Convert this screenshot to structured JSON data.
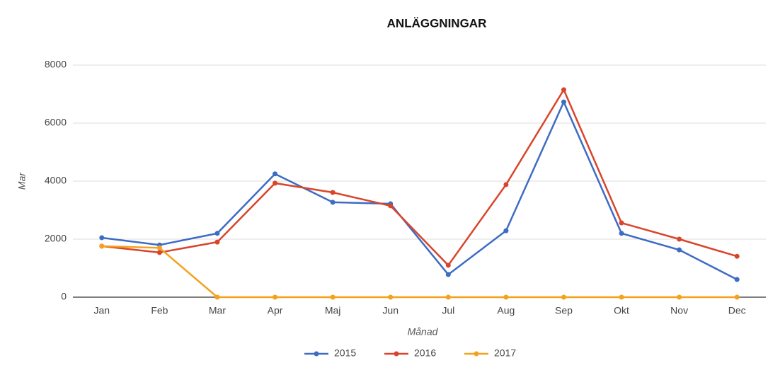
{
  "chart_data": {
    "type": "line",
    "title": "ANLÄGGNINGAR",
    "x_label": "Månad",
    "y_label": "Mar",
    "categories": [
      "Jan",
      "Feb",
      "Mar",
      "Apr",
      "Maj",
      "Jun",
      "Jul",
      "Aug",
      "Sep",
      "Okt",
      "Nov",
      "Dec"
    ],
    "series": [
      {
        "name": "2015",
        "color": "#3d6cc3",
        "values": [
          2050,
          1800,
          2200,
          4250,
          3270,
          3220,
          780,
          2290,
          6730,
          2200,
          1630,
          610
        ]
      },
      {
        "name": "2016",
        "color": "#d8452a",
        "values": [
          1760,
          1540,
          1900,
          3930,
          3610,
          3150,
          1100,
          3880,
          7150,
          2560,
          2000,
          1410
        ]
      },
      {
        "name": "2017",
        "color": "#f4a11d",
        "values": [
          1760,
          1700,
          0,
          0,
          0,
          0,
          0,
          0,
          0,
          0,
          0,
          0
        ]
      }
    ],
    "ylim": [
      0,
      8000
    ],
    "yticks": [
      0,
      2000,
      4000,
      6000,
      8000
    ],
    "grid": true,
    "legend": "bottom"
  }
}
